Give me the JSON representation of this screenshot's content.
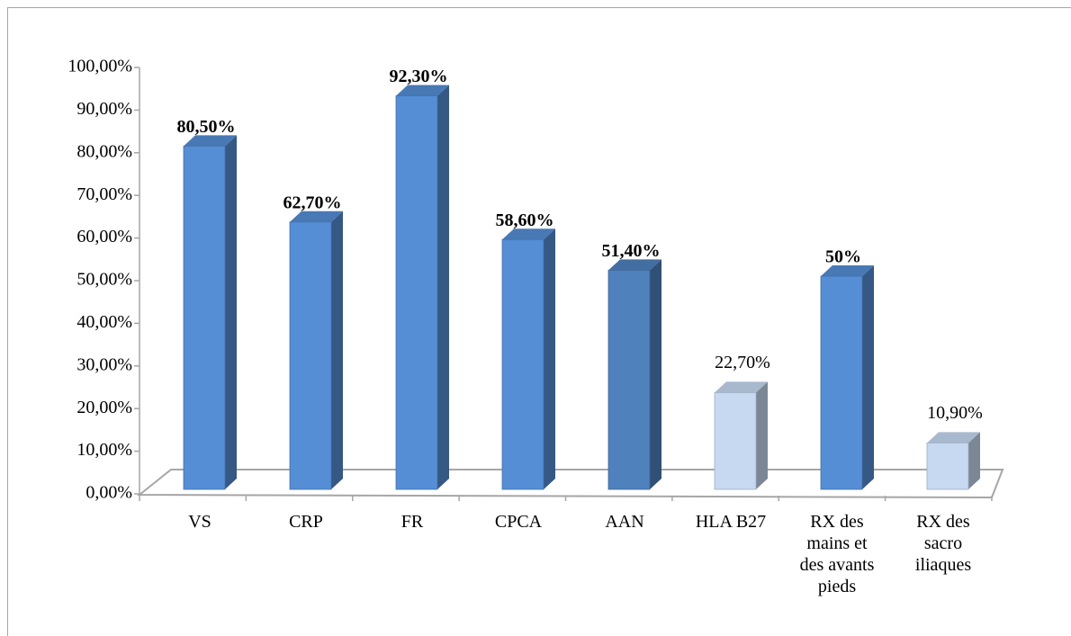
{
  "chart_data": {
    "type": "bar3d",
    "categories": [
      "VS",
      "CRP",
      "FR",
      "CPCA",
      "AAN",
      "HLA B27",
      "RX des mains et des avants pieds",
      "RX des sacro iliaques"
    ],
    "values": [
      80.5,
      62.7,
      92.3,
      58.6,
      51.4,
      22.7,
      50,
      10.9
    ],
    "value_labels": [
      "80,50%",
      "62,70%",
      "92,30%",
      "58,60%",
      "51,40%",
      "22,70%",
      "50%",
      "10,90%"
    ],
    "colors": [
      "#558ed5",
      "#558ed5",
      "#558ed5",
      "#558ed5",
      "#4f81bd",
      "#c6d9f1",
      "#558ed5",
      "#c6d9f1"
    ],
    "ylim": [
      0,
      100
    ],
    "yticks": [
      {
        "value": 0,
        "label": "0,00%"
      },
      {
        "value": 10,
        "label": "10,00%"
      },
      {
        "value": 20,
        "label": "20,00%"
      },
      {
        "value": 30,
        "label": "30,00%"
      },
      {
        "value": 40,
        "label": "40,00%"
      },
      {
        "value": 50,
        "label": "50,00%"
      },
      {
        "value": 60,
        "label": "60,00%"
      },
      {
        "value": 70,
        "label": "70,00%"
      },
      {
        "value": 80,
        "label": "80,00%"
      },
      {
        "value": 90,
        "label": "90,00%"
      },
      {
        "value": 100,
        "label": "100,00%"
      }
    ]
  }
}
